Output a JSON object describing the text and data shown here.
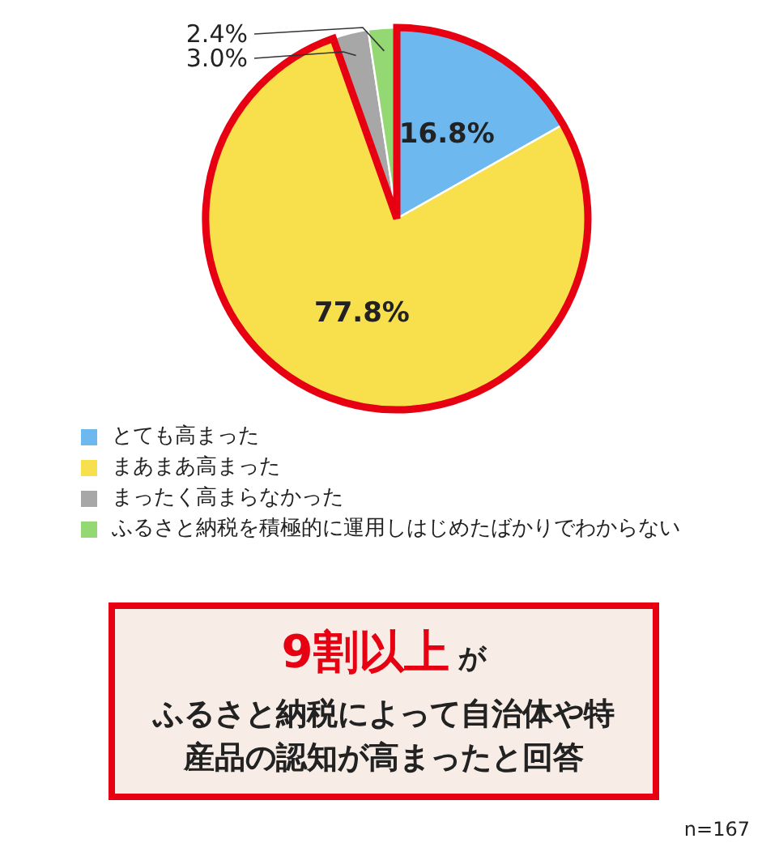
{
  "chart_data": {
    "type": "pie",
    "categories": [
      "とても高まった",
      "まあまあ高まった",
      "まったく高まらなかった",
      "ふるさと納税を積極的に運用しはじめたばかりでわからない"
    ],
    "values": [
      16.8,
      77.8,
      3.0,
      2.4
    ],
    "colors": [
      "#6cb8ef",
      "#f7e04b",
      "#a7a7a7",
      "#93d873"
    ],
    "value_labels": [
      "16.8%",
      "77.8%",
      "3.0%",
      "2.4%"
    ],
    "legend": "bottom",
    "annotations": [
      "9割以上",
      "が",
      "ふるさと納税によって自治体や特産品の認知が高まったと回答",
      "n=167"
    ]
  }
}
